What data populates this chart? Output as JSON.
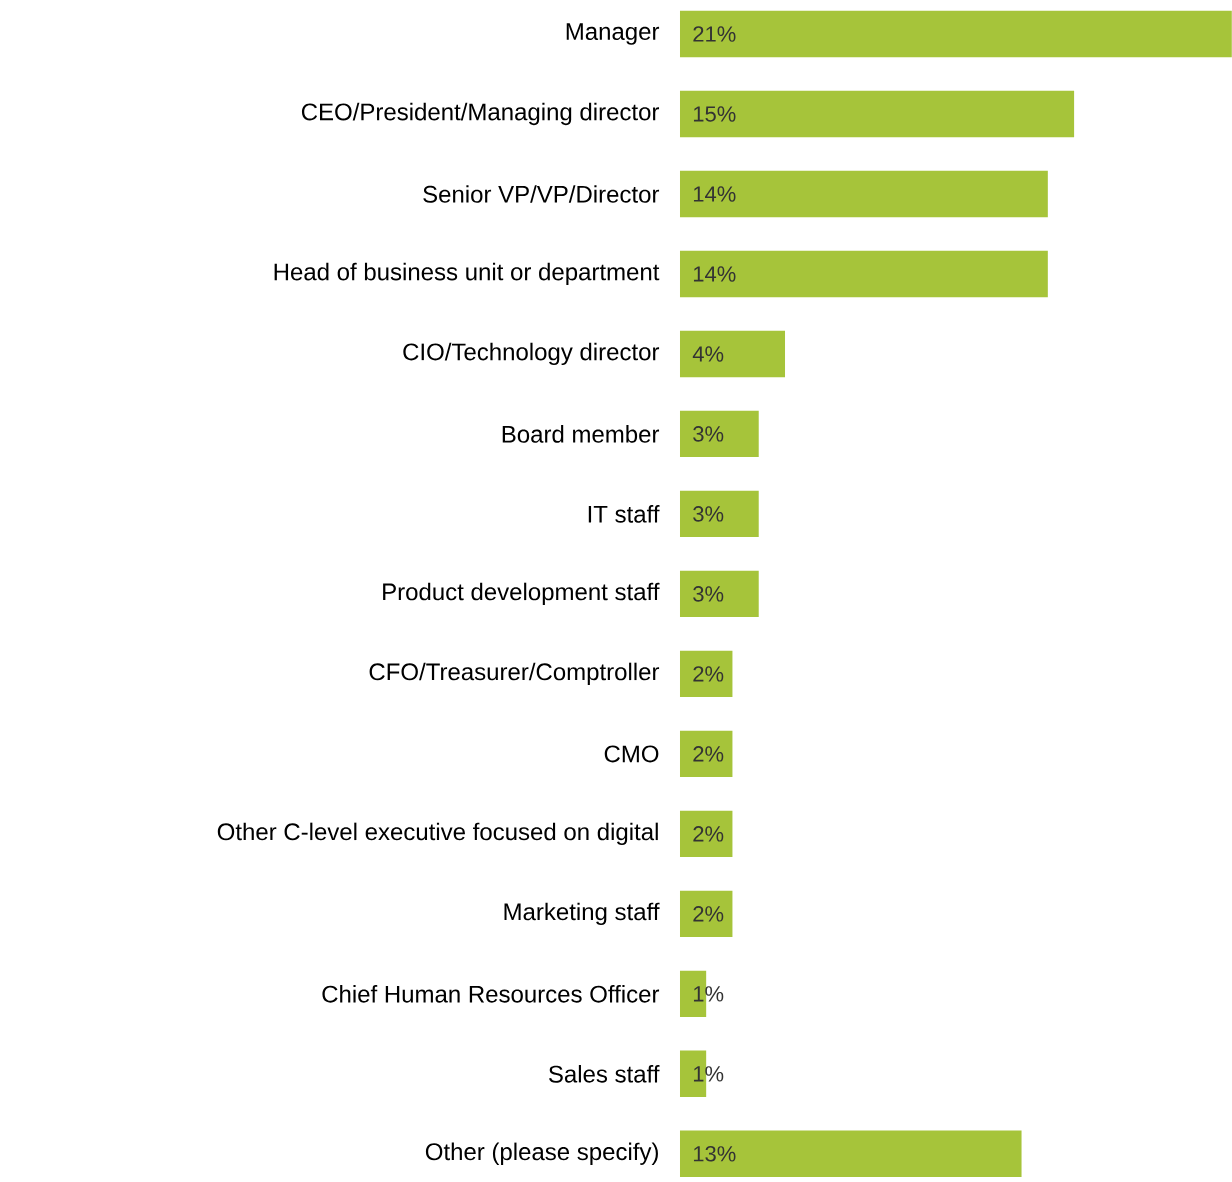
{
  "chart_data": {
    "type": "bar",
    "orientation": "horizontal",
    "tick_labels": "y",
    "categories": [
      "Manager",
      "CEO/President/Managing director",
      "Senior VP/VP/Director",
      "Head of business unit or department",
      "CIO/Technology director",
      "Board member",
      "IT staff",
      "Product development staff",
      "CFO/Treasurer/Comptroller",
      "CMO",
      "Other C-level executive focused on digital",
      "Marketing staff",
      "Chief Human Resources Officer",
      "Sales staff",
      "Other (please specify)"
    ],
    "values": [
      21,
      15,
      14,
      14,
      4,
      3,
      3,
      3,
      2,
      2,
      2,
      2,
      1,
      1,
      13
    ],
    "value_labels": [
      "21%",
      "15%",
      "14%",
      "14%",
      "4%",
      "3%",
      "3%",
      "3%",
      "2%",
      "2%",
      "2%",
      "2%",
      "1%",
      "1%",
      "13%"
    ],
    "color": "#a6c43a"
  }
}
